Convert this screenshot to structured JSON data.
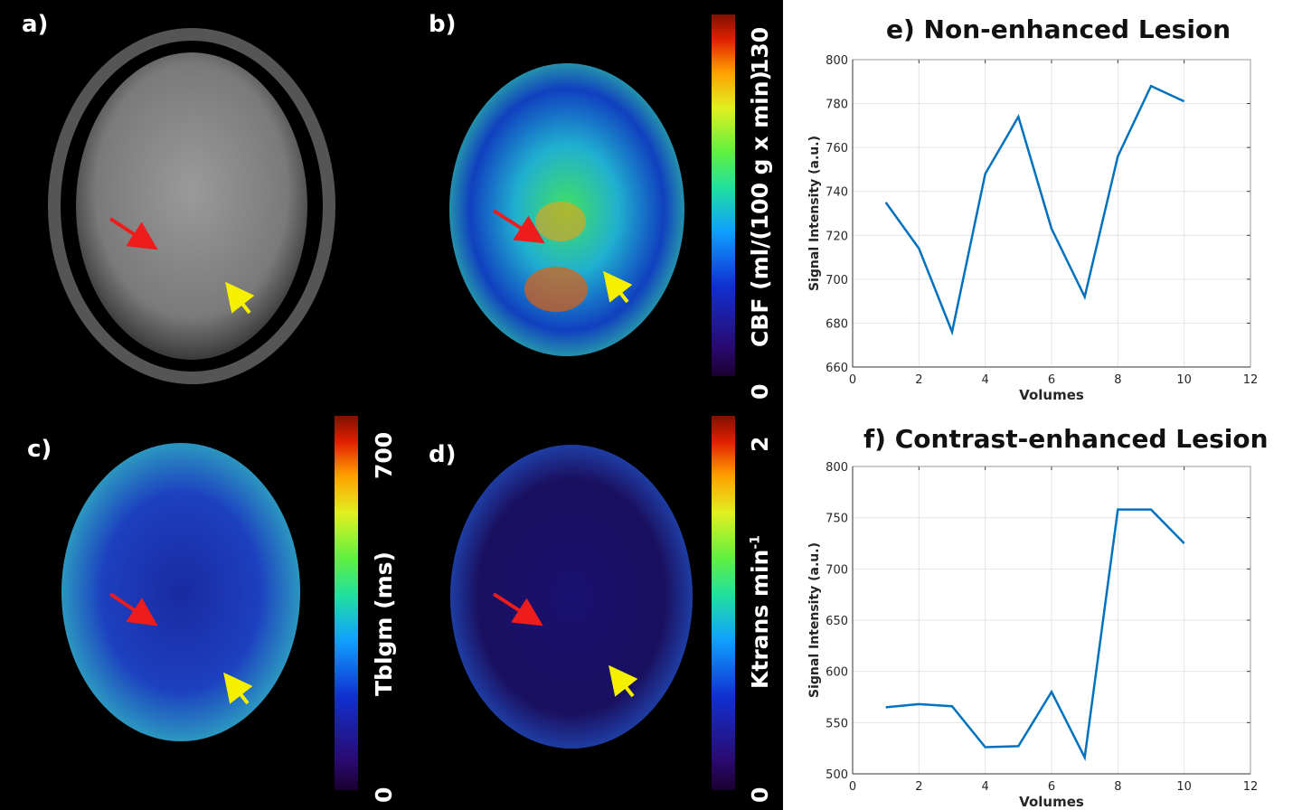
{
  "panels": {
    "a": {
      "label": "a)"
    },
    "b": {
      "label": "b)",
      "colorbar": {
        "label": "CBF (ml/(100 g x min)",
        "min": "0",
        "max": "130"
      }
    },
    "c": {
      "label": "c)",
      "colorbar": {
        "label": "Tblgm (ms)",
        "min": "0",
        "max": "700"
      }
    },
    "d": {
      "label": "d)",
      "colorbar": {
        "label": "Ktrans min",
        "label_sup": "-1",
        "min": "0",
        "max": "2"
      }
    }
  },
  "colors": {
    "line": "#0072BD",
    "red_arrow": "#ee1c1c",
    "yellow_arrow": "#f5f000"
  },
  "chart_data": [
    {
      "type": "line",
      "title": "e) Non-enhanced Lesion",
      "xlabel": "Volumes",
      "ylabel": "Signal Intensity (a.u.)",
      "xlim": [
        0,
        12
      ],
      "ylim": [
        660,
        800
      ],
      "xticks": [
        0,
        2,
        4,
        6,
        8,
        10,
        12
      ],
      "yticks": [
        660,
        680,
        700,
        720,
        740,
        760,
        780,
        800
      ],
      "grid": true,
      "x": [
        1,
        2,
        3,
        4,
        5,
        6,
        7,
        8,
        9,
        10
      ],
      "values": [
        735,
        714,
        676,
        748,
        774,
        723,
        692,
        756,
        788,
        781
      ]
    },
    {
      "type": "line",
      "title": "f) Contrast-enhanced Lesion",
      "xlabel": "Volumes",
      "ylabel": "Signal Intensity (a.u.)",
      "xlim": [
        0,
        12
      ],
      "ylim": [
        500,
        800
      ],
      "xticks": [
        0,
        2,
        4,
        6,
        8,
        10,
        12
      ],
      "yticks": [
        500,
        550,
        600,
        650,
        700,
        750,
        800
      ],
      "grid": true,
      "x": [
        1,
        2,
        3,
        4,
        5,
        6,
        7,
        8,
        9,
        10
      ],
      "values": [
        565,
        568,
        566,
        526,
        527,
        580,
        516,
        758,
        758,
        725
      ]
    }
  ]
}
